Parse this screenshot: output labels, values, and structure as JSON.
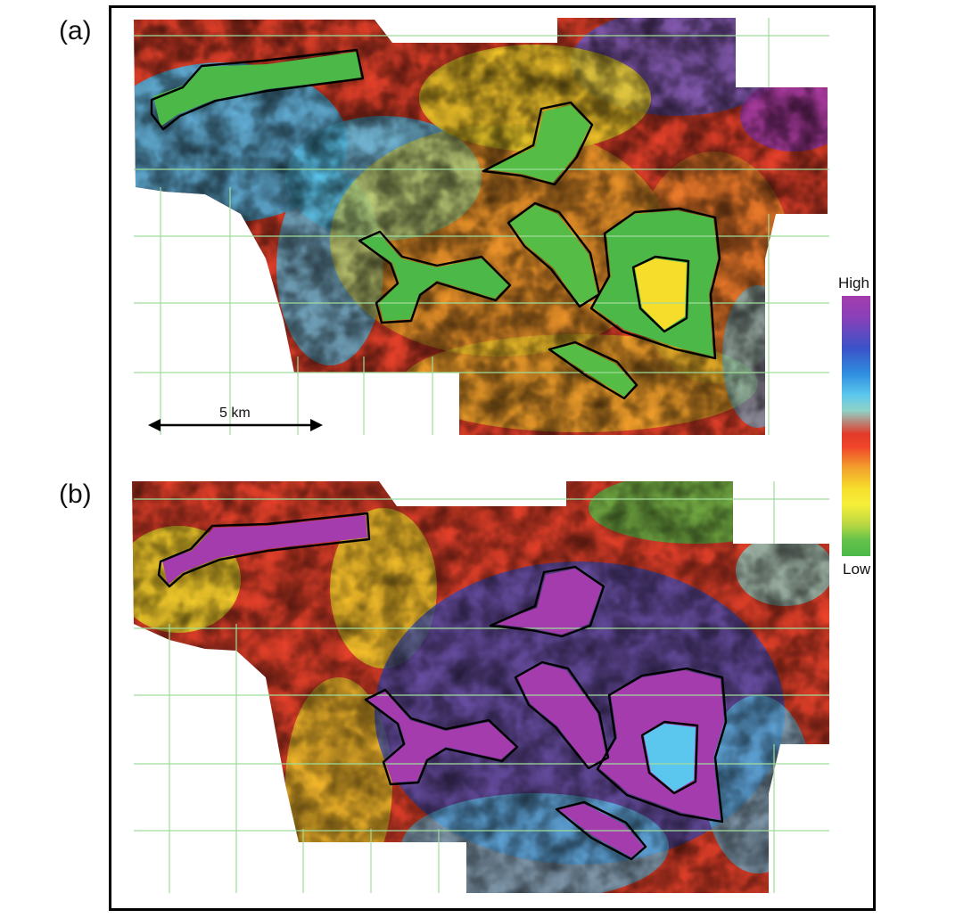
{
  "panels": [
    {
      "label": "(a)",
      "theme": "green-anomaly"
    },
    {
      "label": "(b)",
      "theme": "purple-anomaly"
    }
  ],
  "legend": {
    "high": "High",
    "low": "Low"
  },
  "scale_bar": {
    "label": "5 km"
  },
  "colors": {
    "high": "#a43cad",
    "blue": "#3c52c8",
    "cyan": "#5cc7ee",
    "red": "#e23a2a",
    "yellow": "#f6dd2c",
    "green": "#4cb848",
    "grid": "#9fdc9a",
    "outline": "#000000"
  }
}
